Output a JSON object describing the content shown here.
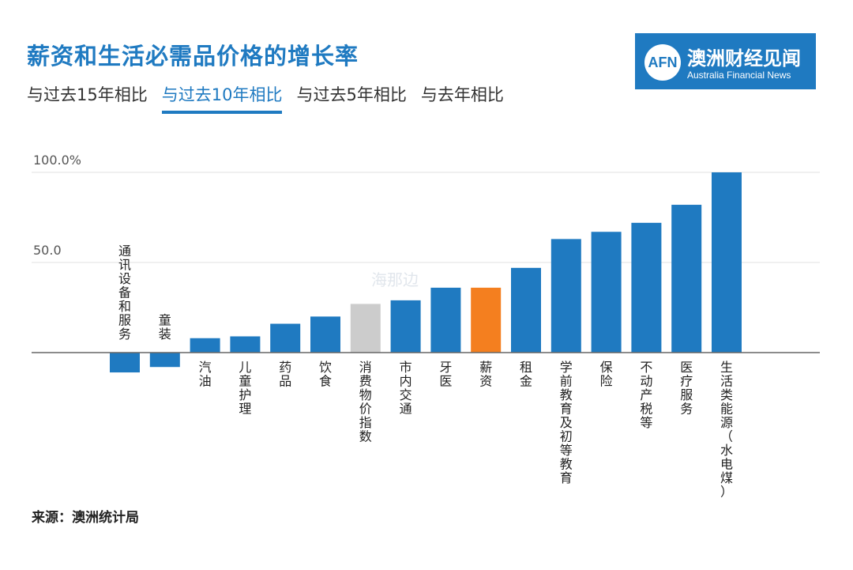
{
  "header": {
    "title": "薪资和生活必需品价格的增长率",
    "tabs": [
      {
        "label": "与过去15年相比",
        "active": false
      },
      {
        "label": "与过去10年相比",
        "active": true
      },
      {
        "label": "与过去5年相比",
        "active": false
      },
      {
        "label": "与去年相比",
        "active": false
      }
    ]
  },
  "logo": {
    "mark": "AFN",
    "name_cn": "澳洲财经见闻",
    "name_en": "Australia Financial News"
  },
  "watermark": "海那边",
  "source": "来源：澳洲统计局",
  "colors": {
    "primary": "#1f7ac1",
    "highlight": "#f47f1f",
    "cpi": "#cccccc",
    "grid": "#e2e2e2",
    "axis": "#666666"
  },
  "chart_data": {
    "type": "bar",
    "title": "薪资和生活必需品价格的增长率",
    "ylim": [
      -12,
      100
    ],
    "yticks": [
      {
        "value": 100,
        "label": "100.0%"
      },
      {
        "value": 50,
        "label": "50.0"
      }
    ],
    "grid": true,
    "categories": [
      "通讯设备和服务",
      "童装",
      "汽油",
      "儿童护理",
      "药品",
      "饮食",
      "消费物价指数",
      "市内交通",
      "牙医",
      "薪资",
      "租金",
      "学前教育及初等教育",
      "保险",
      "不动产税等",
      "医疗服务",
      "生活类能源（水电煤）"
    ],
    "values": [
      -11,
      -8,
      8,
      9,
      16,
      20,
      27,
      29,
      36,
      36,
      47,
      63,
      67,
      72,
      82,
      100
    ],
    "bar_colors": [
      "primary",
      "primary",
      "primary",
      "primary",
      "primary",
      "primary",
      "cpi",
      "primary",
      "primary",
      "highlight",
      "primary",
      "primary",
      "primary",
      "primary",
      "primary",
      "primary"
    ]
  }
}
